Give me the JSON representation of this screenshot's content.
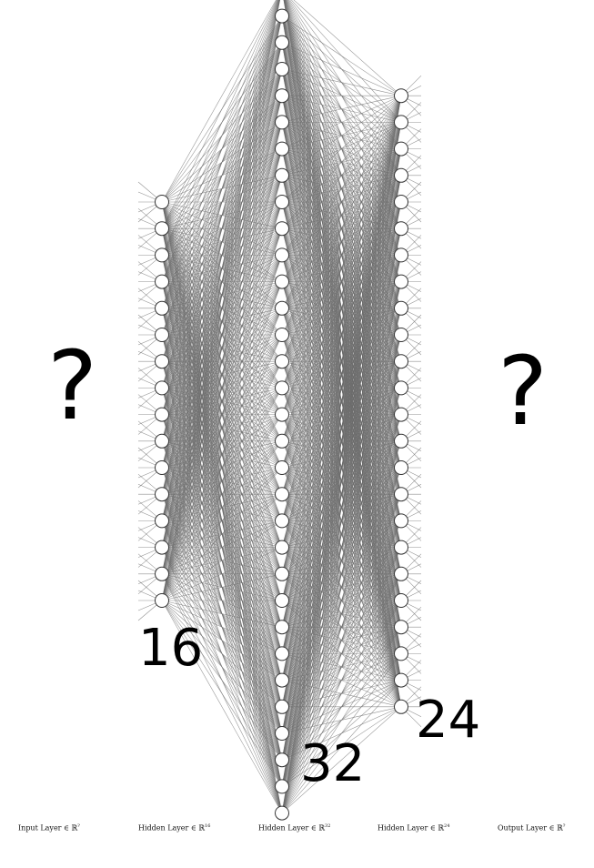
{
  "diagram": {
    "layers": [
      {
        "id": "input",
        "neurons": null,
        "label_text": "Input Layer ∈ ℝ",
        "dim": "?",
        "placeholder": "?"
      },
      {
        "id": "hidden1",
        "neurons": 16,
        "label_text": "Hidden Layer ∈ ℝ",
        "dim": "16",
        "count_label": "16"
      },
      {
        "id": "hidden2",
        "neurons": 32,
        "label_text": "Hidden Layer ∈ ℝ",
        "dim": "32",
        "count_label": "32"
      },
      {
        "id": "hidden3",
        "neurons": 24,
        "label_text": "Hidden Layer ∈ ℝ",
        "dim": "24",
        "count_label": "24"
      },
      {
        "id": "output",
        "neurons": null,
        "label_text": "Output Layer ∈ ℝ",
        "dim": "?",
        "placeholder": "?"
      }
    ],
    "colors": {
      "edge": "#6b6b6b",
      "node_fill": "#ffffff",
      "node_stroke": "#333333"
    }
  }
}
